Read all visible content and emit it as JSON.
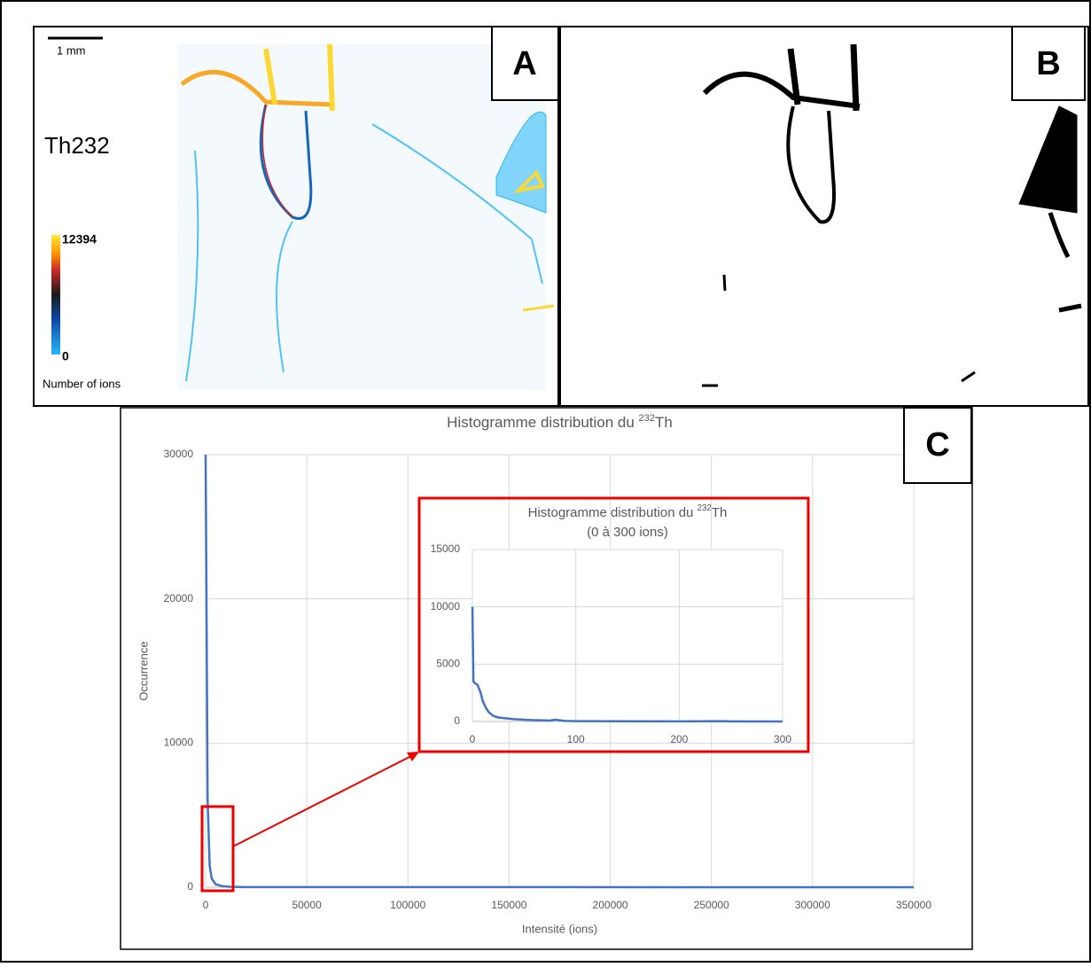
{
  "panels": {
    "a": {
      "label": "A",
      "scale_bar": "1 mm",
      "element": "Th232",
      "colorbar_max": "12394",
      "colorbar_min": "0",
      "colorbar_title": "Number of ions"
    },
    "b": {
      "label": "B"
    },
    "c": {
      "label": "C"
    }
  },
  "chart_data": [
    {
      "type": "line",
      "title": [
        "Histogramme distribution du ",
        "232",
        "Th"
      ],
      "x_label": "Intensité (ions)",
      "y_label": "Occurrence",
      "x": [
        0,
        1000,
        2000,
        3000,
        5000,
        8000,
        12000,
        20000,
        350000
      ],
      "values": [
        30000,
        6000,
        1500,
        600,
        200,
        80,
        30,
        10,
        0
      ],
      "color": "#4472c4",
      "xlim": [
        0,
        350000
      ],
      "xticks": [
        0,
        50000,
        100000,
        150000,
        200000,
        250000,
        300000,
        350000
      ],
      "ylim": [
        0,
        30000
      ],
      "yticks": [
        0,
        10000,
        20000,
        30000
      ],
      "grid": true
    },
    {
      "type": "line",
      "title": [
        "Histogramme distribution du ",
        "232",
        "Th"
      ],
      "subtitle": "(0 à 300 ions)",
      "x": [
        0,
        1,
        3,
        5,
        8,
        10,
        13,
        16,
        20,
        25,
        30,
        40,
        50,
        60,
        70,
        75,
        80,
        90,
        100,
        150,
        200,
        240,
        250,
        300
      ],
      "values": [
        10000,
        3500,
        3300,
        3200,
        2500,
        1800,
        1200,
        800,
        500,
        350,
        300,
        200,
        150,
        120,
        100,
        80,
        150,
        50,
        30,
        20,
        10,
        30,
        10,
        0
      ],
      "color": "#4472c4",
      "xlim": [
        0,
        300
      ],
      "xticks": [
        0,
        100,
        200,
        300
      ],
      "ylim": [
        0,
        15000
      ],
      "yticks": [
        0,
        5000,
        10000,
        15000
      ],
      "grid": true
    }
  ]
}
